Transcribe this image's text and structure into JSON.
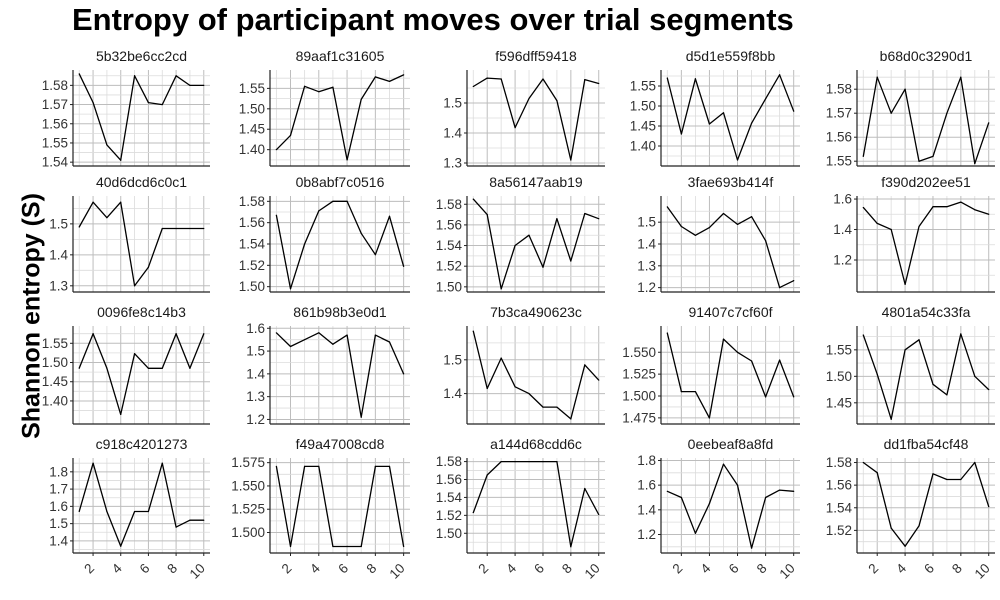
{
  "chart_data": {
    "type": "line",
    "title": "Entropy of participant moves over trial segments",
    "ylabel": "Shannon entropy (S)",
    "xlabel": "",
    "grid": true,
    "x": [
      1,
      2,
      3,
      4,
      5,
      6,
      7,
      8,
      9,
      10
    ],
    "x_ticks": [
      2,
      4,
      6,
      8,
      10
    ],
    "panels": [
      {
        "name": "5b32be6cc2cd",
        "ylim": [
          1.538,
          1.588
        ],
        "y_ticks": [
          1.54,
          1.55,
          1.56,
          1.57,
          1.58
        ],
        "values": [
          1.586,
          1.571,
          1.549,
          1.541,
          1.585,
          1.571,
          1.57,
          1.585,
          1.58,
          1.58
        ]
      },
      {
        "name": "89aaf1c31605",
        "ylim": [
          1.36,
          1.595
        ],
        "y_ticks": [
          1.4,
          1.45,
          1.5,
          1.55
        ],
        "values": [
          1.4,
          1.435,
          1.555,
          1.542,
          1.553,
          1.375,
          1.523,
          1.578,
          1.567,
          1.583
        ]
      },
      {
        "name": "f596dff59418",
        "ylim": [
          1.29,
          1.61
        ],
        "y_ticks": [
          1.3,
          1.4,
          1.5
        ],
        "values": [
          1.555,
          1.583,
          1.58,
          1.418,
          1.515,
          1.58,
          1.508,
          1.31,
          1.578,
          1.565
        ]
      },
      {
        "name": "d5d1e559f8bb",
        "ylim": [
          1.35,
          1.59
        ],
        "y_ticks": [
          1.4,
          1.45,
          1.5,
          1.55
        ],
        "values": [
          1.57,
          1.43,
          1.568,
          1.455,
          1.483,
          1.365,
          1.457,
          1.518,
          1.578,
          1.487
        ]
      },
      {
        "name": "b68d0c3290d1",
        "ylim": [
          1.548,
          1.588
        ],
        "y_ticks": [
          1.55,
          1.56,
          1.57,
          1.58
        ],
        "values": [
          1.552,
          1.585,
          1.57,
          1.58,
          1.55,
          1.552,
          1.57,
          1.585,
          1.549,
          1.566
        ]
      },
      {
        "name": "40d6dcd6c0c1",
        "ylim": [
          1.28,
          1.59
        ],
        "y_ticks": [
          1.3,
          1.4,
          1.5
        ],
        "values": [
          1.49,
          1.57,
          1.52,
          1.57,
          1.3,
          1.36,
          1.485,
          1.485,
          1.485,
          1.485
        ]
      },
      {
        "name": "0b8abf7c0516",
        "ylim": [
          1.495,
          1.585
        ],
        "y_ticks": [
          1.5,
          1.52,
          1.54,
          1.56,
          1.58
        ],
        "values": [
          1.567,
          1.498,
          1.54,
          1.571,
          1.58,
          1.58,
          1.55,
          1.53,
          1.566,
          1.519
        ]
      },
      {
        "name": "8a56147aab19",
        "ylim": [
          1.495,
          1.588
        ],
        "y_ticks": [
          1.5,
          1.52,
          1.54,
          1.56,
          1.58
        ],
        "values": [
          1.585,
          1.57,
          1.498,
          1.54,
          1.55,
          1.519,
          1.566,
          1.525,
          1.571,
          1.566
        ]
      },
      {
        "name": "3fae693b414f",
        "ylim": [
          1.18,
          1.62
        ],
        "y_ticks": [
          1.2,
          1.3,
          1.4,
          1.5
        ],
        "values": [
          1.57,
          1.48,
          1.44,
          1.475,
          1.54,
          1.49,
          1.525,
          1.415,
          1.2,
          1.232
        ]
      },
      {
        "name": "f390d202ee51",
        "ylim": [
          0.99,
          1.62
        ],
        "y_ticks": [
          1.2,
          1.4,
          1.6
        ],
        "values": [
          1.545,
          1.44,
          1.4,
          1.04,
          1.42,
          1.55,
          1.55,
          1.58,
          1.53,
          1.5
        ]
      },
      {
        "name": "0096fe8c14b3",
        "ylim": [
          1.34,
          1.595
        ],
        "y_ticks": [
          1.4,
          1.45,
          1.5,
          1.55
        ],
        "values": [
          1.485,
          1.575,
          1.485,
          1.365,
          1.523,
          1.485,
          1.485,
          1.575,
          1.485,
          1.575
        ]
      },
      {
        "name": "861b98b3e0d1",
        "ylim": [
          1.18,
          1.61
        ],
        "y_ticks": [
          1.2,
          1.3,
          1.4,
          1.5,
          1.6
        ],
        "values": [
          1.58,
          1.52,
          1.55,
          1.58,
          1.53,
          1.57,
          1.21,
          1.57,
          1.54,
          1.4
        ]
      },
      {
        "name": "7b3ca490623c",
        "ylim": [
          1.31,
          1.6
        ],
        "y_ticks": [
          1.4,
          1.5
        ],
        "values": [
          1.585,
          1.415,
          1.505,
          1.42,
          1.4,
          1.36,
          1.36,
          1.325,
          1.485,
          1.44
        ]
      },
      {
        "name": "91407c7cf60f",
        "ylim": [
          1.468,
          1.58
        ],
        "y_ticks": [
          1.475,
          1.5,
          1.525,
          1.55
        ],
        "values": [
          1.572,
          1.505,
          1.505,
          1.475,
          1.565,
          1.55,
          1.54,
          1.499,
          1.541,
          1.499
        ]
      },
      {
        "name": "4801a54c33fa",
        "ylim": [
          1.41,
          1.595
        ],
        "y_ticks": [
          1.45,
          1.5,
          1.55
        ],
        "values": [
          1.578,
          1.504,
          1.419,
          1.55,
          1.569,
          1.485,
          1.465,
          1.58,
          1.5,
          1.475
        ]
      },
      {
        "name": "c918c4201273",
        "ylim": [
          1.33,
          1.88
        ],
        "y_ticks": [
          1.4,
          1.5,
          1.6,
          1.7,
          1.8
        ],
        "values": [
          1.57,
          1.85,
          1.57,
          1.37,
          1.57,
          1.57,
          1.85,
          1.48,
          1.52,
          1.52
        ]
      },
      {
        "name": "f49a47008cd8",
        "ylim": [
          1.478,
          1.58
        ],
        "y_ticks": [
          1.5,
          1.525,
          1.55,
          1.575
        ],
        "values": [
          1.571,
          1.485,
          1.571,
          1.571,
          1.485,
          1.485,
          1.485,
          1.571,
          1.571,
          1.485
        ]
      },
      {
        "name": "a144d68cdd6c",
        "ylim": [
          1.478,
          1.584
        ],
        "y_ticks": [
          1.5,
          1.52,
          1.54,
          1.56,
          1.58
        ],
        "values": [
          1.523,
          1.565,
          1.58,
          1.58,
          1.58,
          1.58,
          1.58,
          1.485,
          1.55,
          1.521
        ]
      },
      {
        "name": "0eebeaf8a8fd",
        "ylim": [
          1.05,
          1.82
        ],
        "y_ticks": [
          1.2,
          1.4,
          1.6,
          1.8
        ],
        "values": [
          1.55,
          1.5,
          1.21,
          1.45,
          1.77,
          1.6,
          1.09,
          1.5,
          1.56,
          1.55
        ]
      },
      {
        "name": "dd1fba54cf48",
        "ylim": [
          1.5,
          1.584
        ],
        "y_ticks": [
          1.52,
          1.54,
          1.56,
          1.58
        ],
        "values": [
          1.58,
          1.571,
          1.522,
          1.506,
          1.524,
          1.57,
          1.565,
          1.565,
          1.58,
          1.541
        ]
      }
    ]
  }
}
